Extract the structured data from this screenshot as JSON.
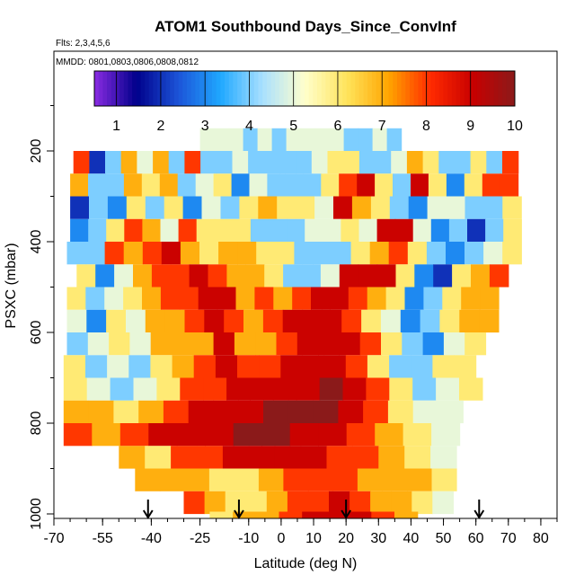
{
  "chart_data": {
    "type": "heatmap",
    "title": "ATOM1 Southbound Days_Since_ConvInf",
    "flights_label": "Flts: 2,3,4,5,6",
    "dates_label": "MMDD: 0801,0803,0806,0808,0812",
    "xlabel": "Latitude (deg N)",
    "ylabel": "PSXC (mbar)",
    "xlim": [
      -70,
      85
    ],
    "ylim": [
      1000,
      0
    ],
    "x_ticks": [
      -70,
      -55,
      -40,
      -25,
      -10,
      0,
      10,
      20,
      30,
      40,
      50,
      60,
      70,
      80
    ],
    "y_ticks": [
      200,
      400,
      600,
      800,
      1000
    ],
    "colorbar": {
      "min": 0.5,
      "max": 10,
      "ticks": [
        1,
        2,
        3,
        4,
        5,
        6,
        7,
        8,
        9,
        10
      ],
      "colors": [
        "#8a2be2",
        "#00008b",
        "#1c54d8",
        "#1fa8ff",
        "#a9e0ff",
        "#ffffcc",
        "#ffe45c",
        "#ffa500",
        "#ff2a00",
        "#c80000",
        "#8b1a1a"
      ]
    },
    "markers_lat": [
      -41,
      -13,
      20,
      61
    ],
    "rows": [
      {
        "p": 175,
        "lat_start": -25,
        "lat_end": 37,
        "values": [
          5,
          5,
          5,
          4,
          5,
          4,
          5,
          5,
          5,
          5,
          4,
          4,
          5,
          4
        ]
      },
      {
        "p": 225,
        "lat_start": -64,
        "lat_end": 73,
        "values": [
          8,
          2,
          4,
          7,
          5,
          7,
          4,
          8,
          4,
          4,
          5,
          4,
          4,
          4,
          4,
          5,
          6,
          6,
          4,
          4,
          5,
          7,
          6,
          4,
          4,
          6,
          4,
          8
        ]
      },
      {
        "p": 275,
        "lat_start": -65,
        "lat_end": 73,
        "values": [
          7,
          4,
          4,
          7,
          6,
          7,
          4,
          5,
          6,
          3,
          5,
          4,
          4,
          4,
          6,
          8,
          9,
          6,
          4,
          9,
          6,
          3,
          6,
          8,
          8
        ]
      },
      {
        "p": 325,
        "lat_start": -65,
        "lat_end": 74,
        "values": [
          2,
          4,
          3,
          6,
          4,
          6,
          3,
          5,
          4,
          6,
          7,
          6,
          6,
          5,
          9,
          7,
          6,
          4,
          3,
          5,
          5,
          4,
          4,
          6
        ]
      },
      {
        "p": 375,
        "lat_start": -65,
        "lat_end": 74,
        "values": [
          3,
          4,
          6,
          8,
          7,
          5,
          8,
          6,
          6,
          6,
          4,
          4,
          4,
          5,
          5,
          6,
          5,
          9,
          9,
          5,
          3,
          4,
          2,
          4,
          6
        ]
      },
      {
        "p": 425,
        "lat_start": -66,
        "lat_end": 74,
        "values": [
          4,
          4,
          8,
          7,
          8,
          9,
          7,
          6,
          7,
          7,
          6,
          6,
          4,
          4,
          4,
          6,
          7,
          8,
          6,
          4,
          3,
          4,
          5,
          6
        ]
      },
      {
        "p": 475,
        "lat_start": -63,
        "lat_end": 70,
        "values": [
          6,
          3,
          5,
          7,
          8,
          8,
          9,
          8,
          7,
          7,
          6,
          4,
          4,
          5,
          9,
          9,
          9,
          6,
          3,
          2,
          6,
          7,
          8
        ]
      },
      {
        "p": 525,
        "lat_start": -66,
        "lat_end": 67,
        "values": [
          6,
          4,
          5,
          6,
          7,
          8,
          8,
          9,
          9,
          7,
          8,
          7,
          8,
          9,
          9,
          8,
          7,
          6,
          3,
          4,
          6,
          7,
          7
        ]
      },
      {
        "p": 575,
        "lat_start": -66,
        "lat_end": 67,
        "values": [
          5,
          3,
          6,
          5,
          7,
          7,
          8,
          9,
          8,
          7,
          8,
          9,
          9,
          9,
          8,
          6,
          5,
          3,
          4,
          6,
          7,
          7
        ]
      },
      {
        "p": 625,
        "lat_start": -66,
        "lat_end": 63,
        "values": [
          4,
          5,
          6,
          5,
          7,
          7,
          7,
          9,
          7,
          7,
          8,
          9,
          9,
          9,
          8,
          6,
          4,
          3,
          5,
          6
        ]
      },
      {
        "p": 675,
        "lat_start": -67,
        "lat_end": 60,
        "values": [
          6,
          4,
          5,
          4,
          6,
          7,
          8,
          9,
          8,
          8,
          9,
          9,
          9,
          8,
          6,
          4,
          4,
          6,
          6
        ]
      },
      {
        "p": 725,
        "lat_start": -67,
        "lat_end": 62,
        "values": [
          6,
          5,
          4,
          5,
          6,
          8,
          8,
          9,
          9,
          9,
          9,
          10,
          9,
          8,
          6,
          4,
          5,
          6
        ]
      },
      {
        "p": 775,
        "lat_start": -67,
        "lat_end": 56,
        "values": [
          7,
          7,
          6,
          7,
          8,
          9,
          9,
          9,
          10,
          10,
          10,
          9,
          8,
          6,
          5,
          5
        ]
      },
      {
        "p": 825,
        "lat_start": -67,
        "lat_end": 55,
        "values": [
          8,
          7,
          8,
          9,
          9,
          9,
          10,
          10,
          9,
          9,
          8,
          7,
          6,
          5
        ]
      },
      {
        "p": 875,
        "lat_start": -50,
        "lat_end": 54,
        "values": [
          7,
          6,
          8,
          8,
          9,
          9,
          9,
          9,
          8,
          8,
          7,
          6,
          5
        ]
      },
      {
        "p": 925,
        "lat_start": -45,
        "lat_end": 54,
        "values": [
          7,
          7,
          7,
          6,
          6,
          7,
          8,
          8,
          8,
          7,
          7,
          7,
          6
        ]
      },
      {
        "p": 975,
        "lat_start": -30,
        "lat_end": 53,
        "values": [
          8,
          7,
          6,
          6,
          7,
          8,
          8,
          9,
          8,
          7,
          7,
          6,
          5
        ]
      },
      {
        "p": 1020,
        "lat_start": -22,
        "lat_end": 42,
        "values": [
          6,
          7,
          7,
          8,
          9,
          9,
          9,
          8,
          7
        ]
      }
    ]
  }
}
